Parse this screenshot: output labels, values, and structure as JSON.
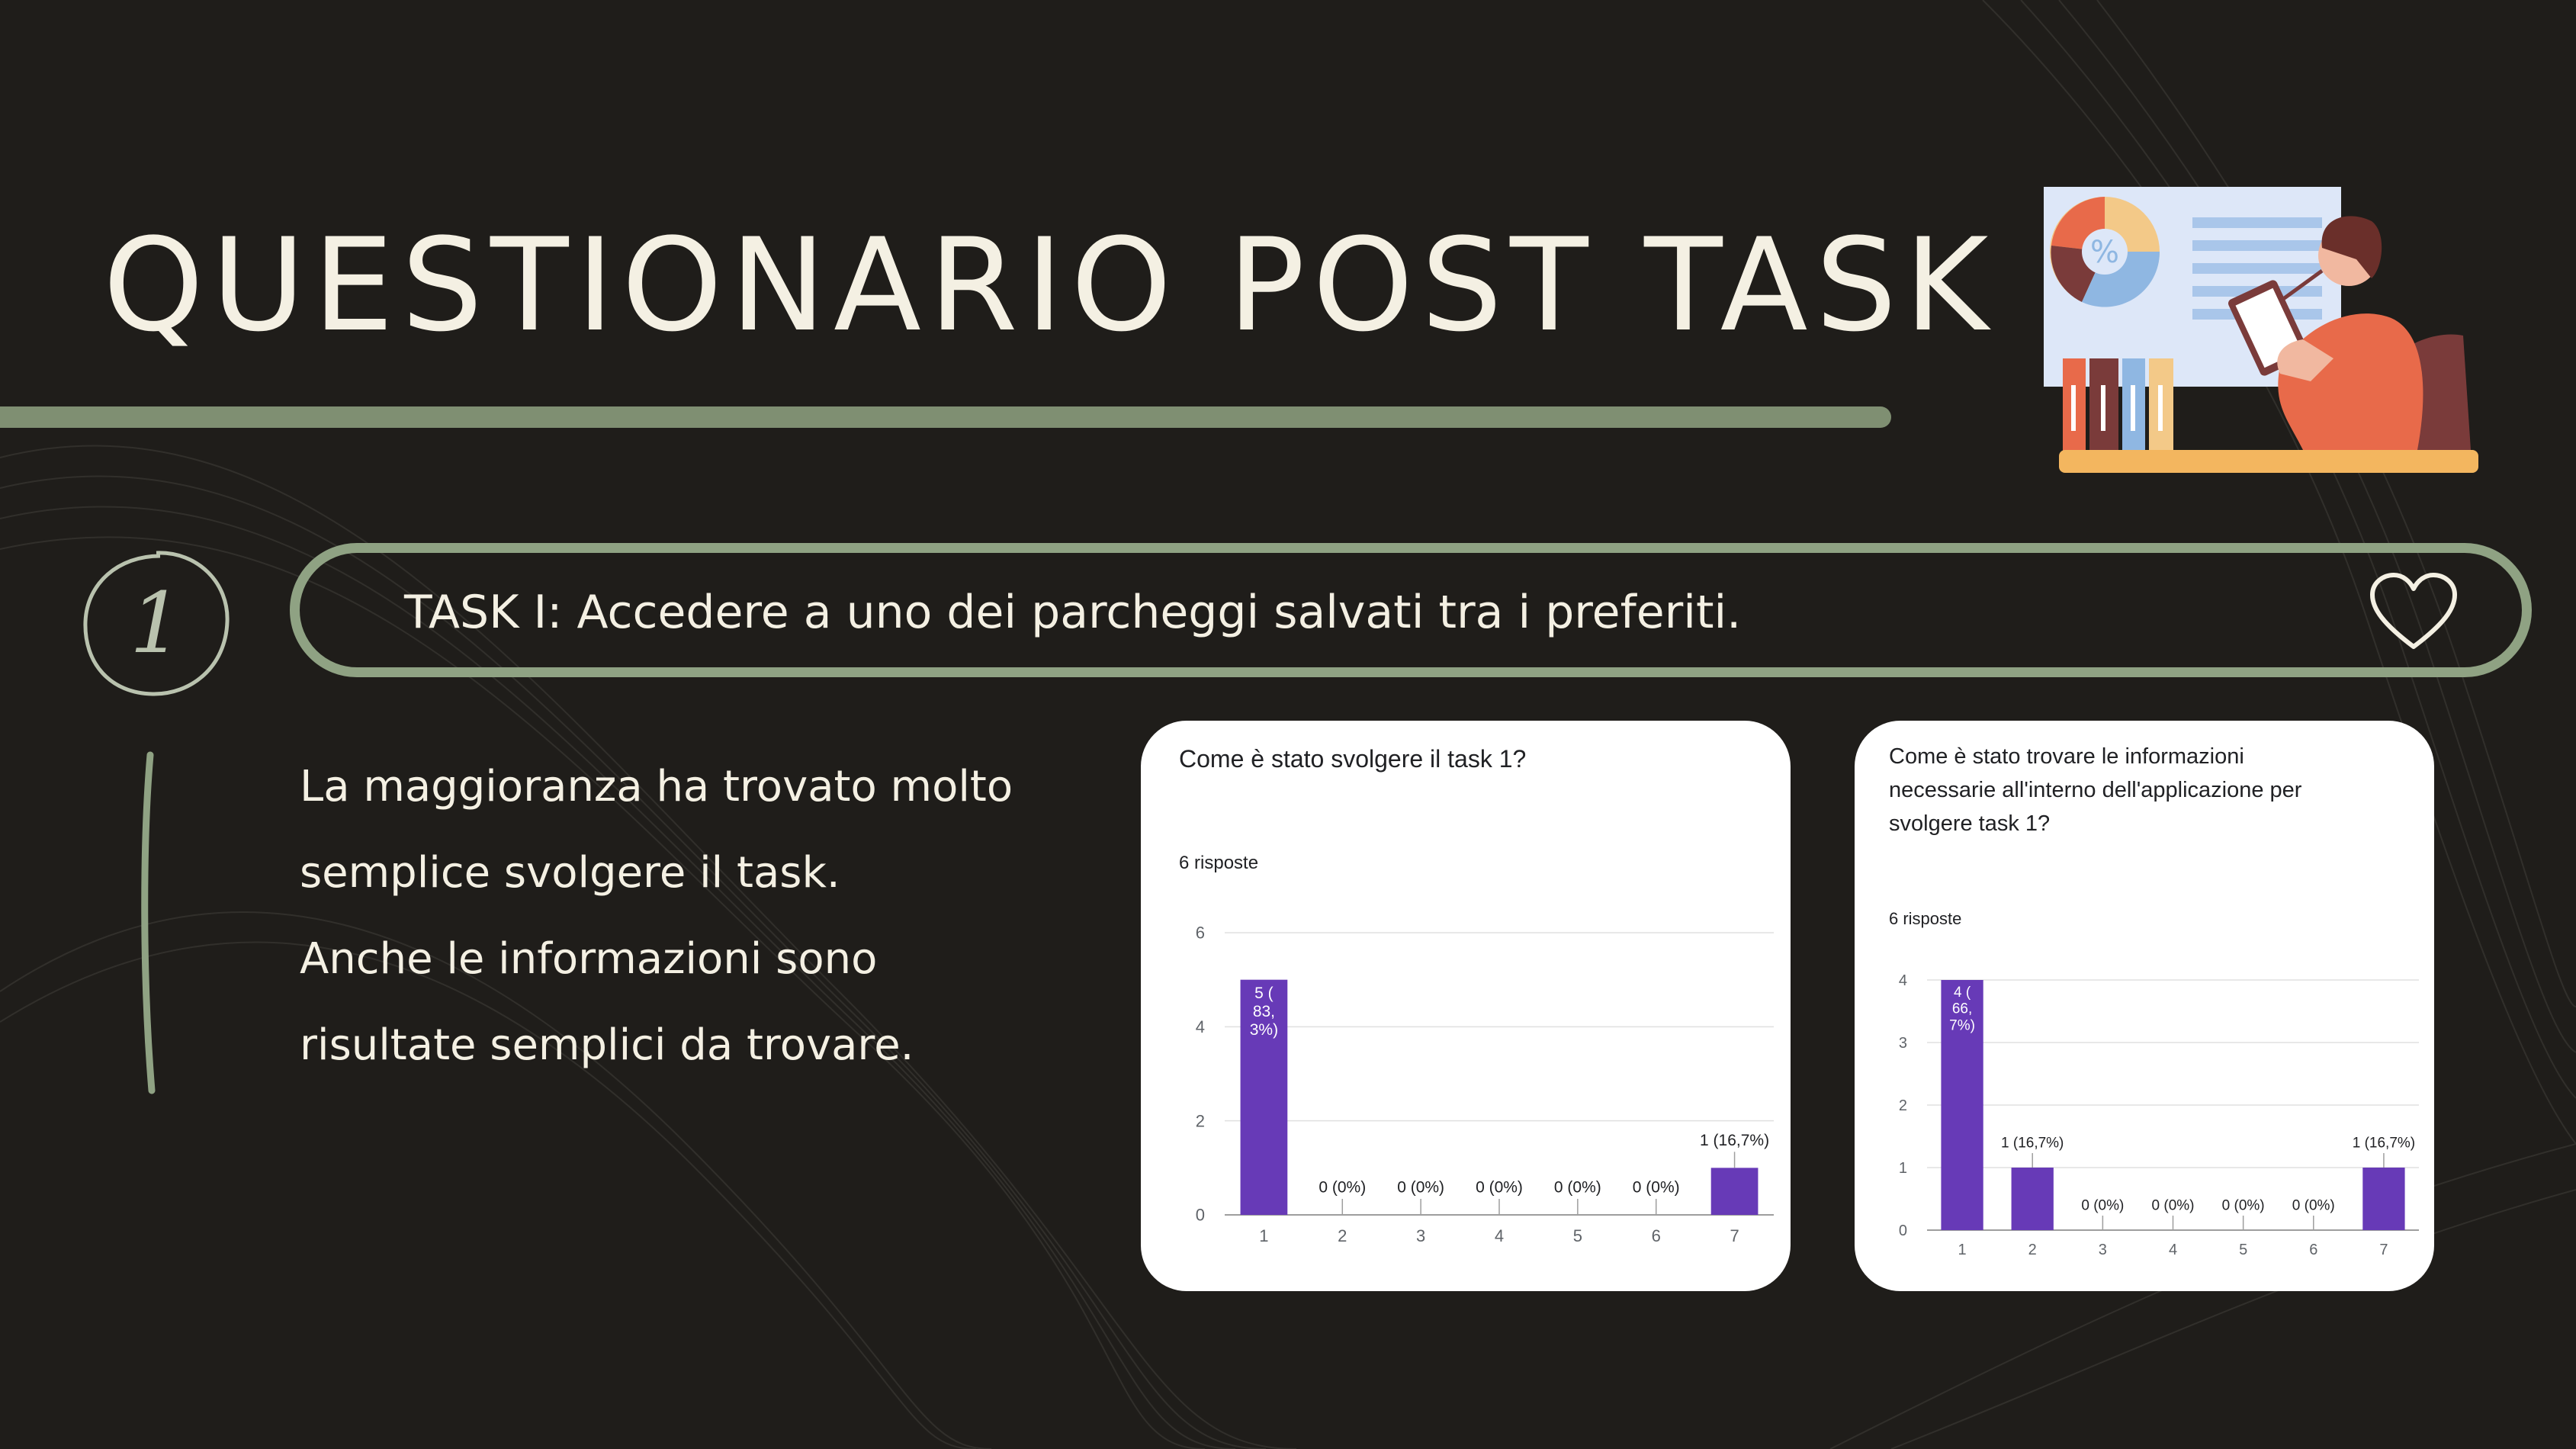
{
  "title": "QUESTIONARIO POST TASK",
  "step_number": "1",
  "task": {
    "label": "TASK I: Accedere a uno dei parcheggi salvati tra i preferiti."
  },
  "summary": {
    "lines": [
      "La maggioranza ha trovato  molto",
      "semplice svolgere il task.",
      "Anche le informazioni sono",
      "risultate semplici da trovare."
    ]
  },
  "colors": {
    "background": "#1f1d1a",
    "accent": "#8fa283",
    "text": "#f4f0e3",
    "bar": "#673ab7"
  },
  "icons": {
    "heart": "heart-icon",
    "illustration": "data-analyst-illustration"
  },
  "chart_data": [
    {
      "type": "bar",
      "title": "Come è stato svolgere il task 1?",
      "subtitle": "6 risposte",
      "categories": [
        "1",
        "2",
        "3",
        "4",
        "5",
        "6",
        "7"
      ],
      "values": [
        5,
        0,
        0,
        0,
        0,
        0,
        1
      ],
      "data_labels": [
        "5 (83,3%)",
        "0 (0%)",
        "0 (0%)",
        "0 (0%)",
        "0 (0%)",
        "0 (0%)",
        "1 (16,7%)"
      ],
      "yticks": [
        "0",
        "2",
        "4",
        "6"
      ],
      "ylim": [
        0,
        6
      ],
      "grid": true
    },
    {
      "type": "bar",
      "title": "Come è stato trovare le informazioni necessarie all'interno dell'applicazione per svolgere task 1?",
      "subtitle": "6 risposte",
      "categories": [
        "1",
        "2",
        "3",
        "4",
        "5",
        "6",
        "7"
      ],
      "values": [
        4,
        1,
        0,
        0,
        0,
        0,
        1
      ],
      "data_labels": [
        "4 (66,7%)",
        "1 (16,7%)",
        "0 (0%)",
        "0 (0%)",
        "0 (0%)",
        "0 (0%)",
        "1 (16,7%)"
      ],
      "yticks": [
        "0",
        "1",
        "2",
        "3",
        "4"
      ],
      "ylim": [
        0,
        4
      ],
      "grid": true
    }
  ]
}
